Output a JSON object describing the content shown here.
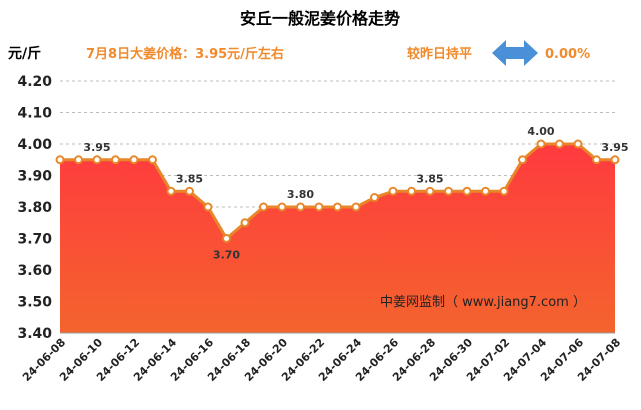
{
  "header": {
    "title": "安丘一般泥姜价格走势",
    "unit": "元/斤",
    "price_line": "7月8日大姜价格：3.95元/斤左右",
    "compare_label": "较昨日持平",
    "compare_value": "0.00%",
    "compare_icon": "double-arrow-icon"
  },
  "watermark": "中姜网监制（ www.jiang7.com ）",
  "colors": {
    "line": "#e8862a",
    "marker_fill": "#ffffff",
    "area_top": "#ff3a3f",
    "area_bottom": "#f4642d",
    "accent_text": "#f08a2c",
    "arrow": "#4a90d9"
  },
  "chart_data": {
    "type": "area",
    "ylabel": "元/斤",
    "ylim": [
      3.4,
      4.2
    ],
    "yticks": [
      "3.40",
      "3.50",
      "3.60",
      "3.70",
      "3.80",
      "3.90",
      "4.00",
      "4.10",
      "4.20"
    ],
    "grid": true,
    "x": [
      "24-06-08",
      "24-06-09",
      "24-06-10",
      "24-06-11",
      "24-06-12",
      "24-06-13",
      "24-06-14",
      "24-06-15",
      "24-06-16",
      "24-06-17",
      "24-06-18",
      "24-06-19",
      "24-06-20",
      "24-06-21",
      "24-06-22",
      "24-06-23",
      "24-06-24",
      "24-06-25",
      "24-06-26",
      "24-06-27",
      "24-06-28",
      "24-06-29",
      "24-06-30",
      "24-07-01",
      "24-07-02",
      "24-07-03",
      "24-07-04",
      "24-07-05",
      "24-07-06",
      "24-07-07",
      "24-07-08"
    ],
    "xticks": [
      "24-06-08",
      "24-06-10",
      "24-06-12",
      "24-06-14",
      "24-06-16",
      "24-06-18",
      "24-06-20",
      "24-06-22",
      "24-06-24",
      "24-06-26",
      "24-06-28",
      "24-06-30",
      "24-07-02",
      "24-07-04",
      "24-07-06",
      "24-07-08"
    ],
    "series": [
      {
        "values": [
          3.95,
          3.95,
          3.95,
          3.95,
          3.95,
          3.95,
          3.85,
          3.85,
          3.8,
          3.7,
          3.75,
          3.8,
          3.8,
          3.8,
          3.8,
          3.8,
          3.8,
          3.83,
          3.85,
          3.85,
          3.85,
          3.85,
          3.85,
          3.85,
          3.85,
          3.95,
          4.0,
          4.0,
          4.0,
          3.95,
          3.95
        ]
      }
    ],
    "data_labels": [
      {
        "x": "24-06-10",
        "text": "3.95",
        "pos": "above"
      },
      {
        "x": "24-06-15",
        "text": "3.85",
        "pos": "above"
      },
      {
        "x": "24-06-17",
        "text": "3.70",
        "pos": "below"
      },
      {
        "x": "24-06-21",
        "text": "3.80",
        "pos": "above"
      },
      {
        "x": "24-06-28",
        "text": "3.85",
        "pos": "above"
      },
      {
        "x": "24-07-04",
        "text": "4.00",
        "pos": "above"
      },
      {
        "x": "24-07-08",
        "text": "3.95",
        "pos": "above"
      }
    ]
  }
}
